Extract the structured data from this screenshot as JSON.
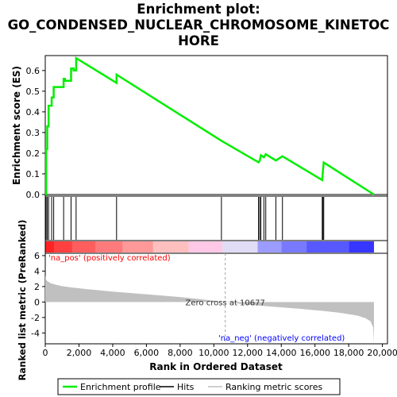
{
  "title_lines": [
    "Enrichment plot:",
    "GO_CONDENSED_NUCLEAR_CHROMOSOME_KINETOC",
    "HORE"
  ],
  "colors": {
    "enrichment_line": "#00ee00",
    "hits": "#000000",
    "metric_fill": "#c0c0c0",
    "pos_label": "#ff0000",
    "neg_label": "#0000ff",
    "zero_cross_line": "#a0a0a0"
  },
  "chart_data": [
    {
      "type": "line",
      "name": "enrichment-score-panel",
      "ylabel": "Enrichment score (ES)",
      "xlim": [
        0,
        20300
      ],
      "ylim": [
        0,
        0.68
      ],
      "y_ticks": [
        "0.0",
        "0.1",
        "0.2",
        "0.3",
        "0.4",
        "0.5",
        "0.6"
      ],
      "y_tick_values": [
        0.0,
        0.1,
        0.2,
        0.3,
        0.4,
        0.5,
        0.6
      ],
      "grid": false,
      "series": [
        {
          "name": "Enrichment profile",
          "x": [
            0,
            50,
            50,
            120,
            120,
            200,
            200,
            380,
            380,
            500,
            500,
            1090,
            1090,
            1170,
            1170,
            1530,
            1530,
            1680,
            1680,
            1830,
            1830,
            4230,
            4230,
            10450,
            10450,
            12650,
            12650,
            12720,
            12720,
            12790,
            12790,
            12970,
            12970,
            13080,
            13080,
            13680,
            13680,
            14070,
            14070,
            16430,
            16430,
            16470,
            16470,
            16520,
            16520,
            19500
          ],
          "y": [
            0,
            0,
            0.22,
            0.22,
            0.33,
            0.33,
            0.43,
            0.43,
            0.47,
            0.47,
            0.52,
            0.52,
            0.56,
            0.56,
            0.55,
            0.55,
            0.61,
            0.61,
            0.6,
            0.6,
            0.66,
            0.54,
            0.58,
            0.26,
            0.26,
            0.156,
            0.156,
            0.163,
            0.163,
            0.19,
            0.19,
            0.18,
            0.18,
            0.195,
            0.195,
            0.165,
            0.165,
            0.185,
            0.185,
            0.07,
            0.07,
            0.115,
            0.115,
            0.155,
            0.155,
            0.0
          ]
        }
      ]
    },
    {
      "type": "scatter",
      "name": "hits-panel",
      "series": [
        {
          "name": "Hits",
          "x": [
            50,
            120,
            200,
            380,
            500,
            1090,
            1530,
            1830,
            4230,
            10450,
            12650,
            12720,
            12790,
            12970,
            13080,
            13680,
            14070,
            16430,
            16470,
            16520
          ]
        }
      ]
    },
    {
      "type": "heatmap",
      "name": "rank-color-bar",
      "values": [
        1,
        0.85,
        0.7,
        0.55,
        0.4,
        0.2,
        0.05,
        -0.15,
        -0.35,
        -0.55,
        -0.75,
        -0.95
      ],
      "x_ranges": [
        [
          0,
          550
        ],
        [
          550,
          1600
        ],
        [
          1600,
          3000
        ],
        [
          3000,
          4600
        ],
        [
          4600,
          6400
        ],
        [
          6400,
          8500
        ],
        [
          8500,
          10500
        ],
        [
          10500,
          12600
        ],
        [
          12600,
          14000
        ],
        [
          14000,
          15500
        ],
        [
          15500,
          18000
        ],
        [
          18000,
          19500
        ]
      ]
    },
    {
      "type": "area",
      "name": "ranked-metric-panel",
      "xlabel": "Rank in Ordered Dataset",
      "ylabel": "Ranked list metric (PreRanked)",
      "xlim": [
        0,
        20300
      ],
      "ylim": [
        -5.4,
        6.3
      ],
      "x_ticks": [
        "0",
        "2,000",
        "4,000",
        "6,000",
        "8,000",
        "10,000",
        "12,000",
        "14,000",
        "16,000",
        "18,000",
        "20,000"
      ],
      "x_tick_values": [
        0,
        2000,
        4000,
        6000,
        8000,
        10000,
        12000,
        14000,
        16000,
        18000,
        20000
      ],
      "y_ticks": [
        "6",
        "4",
        "2",
        "0",
        "-2",
        "-4"
      ],
      "y_tick_values": [
        6,
        4,
        2,
        0,
        -2,
        -4
      ],
      "series": [
        {
          "name": "Ranking metric scores",
          "x": [
            0,
            30,
            100,
            300,
            600,
            1000,
            1500,
            2500,
            4000,
            6000,
            8000,
            9500,
            10677,
            12000,
            13500,
            15000,
            16500,
            17500,
            18500,
            19000,
            19300,
            19450,
            19500
          ],
          "y": [
            3.5,
            3.0,
            2.75,
            2.45,
            2.25,
            2.05,
            1.9,
            1.65,
            1.35,
            1.0,
            0.65,
            0.3,
            0.0,
            -0.35,
            -0.6,
            -0.85,
            -1.15,
            -1.4,
            -1.75,
            -2.1,
            -2.5,
            -3.3,
            -5.3
          ]
        }
      ],
      "annotations": {
        "pos_label": "'na_pos' (positively correlated)",
        "neg_label": "'na_neg' (negatively correlated)",
        "zero_cross_label": "Zero cross at 10677",
        "zero_cross_x": 10677
      }
    }
  ],
  "legend": {
    "placement": "bottom",
    "items": [
      "Enrichment profile",
      "Hits",
      "Ranking metric scores"
    ]
  }
}
